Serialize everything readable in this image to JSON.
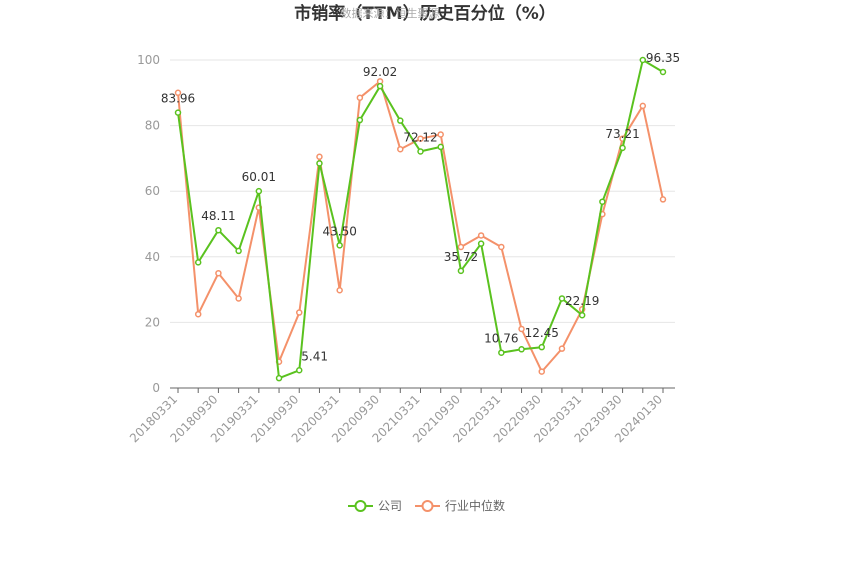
{
  "chart_data": {
    "type": "line",
    "title": "市销率（TTM）历史百分位（%）",
    "watermark": "数据来源：恒生聚源",
    "ylim": [
      0,
      100
    ],
    "y_ticks": [
      "0",
      "20",
      "40",
      "60",
      "80",
      "100"
    ],
    "x_tick_labels": [
      "20180331",
      "20180930",
      "20190331",
      "20190930",
      "20200331",
      "20200930",
      "20210331",
      "20210930",
      "20220331",
      "20220930",
      "20230331",
      "20230930",
      "20240130"
    ],
    "x": [
      "20180331",
      "20180630",
      "20180930",
      "20181231",
      "20190331",
      "20190630",
      "20190930",
      "20191231",
      "20200331",
      "20200630",
      "20200930",
      "20201231",
      "20210331",
      "20210630",
      "20210930",
      "20211231",
      "20220331",
      "20220630",
      "20220930",
      "20221231",
      "20230331",
      "20230630",
      "20230930",
      "20231231",
      "20240130"
    ],
    "series": [
      {
        "name": "公司",
        "color": "#5ac21f",
        "values": [
          83.96,
          38.3,
          48.11,
          41.8,
          60.01,
          3.0,
          5.41,
          68.5,
          43.5,
          81.7,
          92.02,
          81.5,
          72.12,
          73.5,
          35.72,
          44.0,
          10.76,
          11.8,
          12.45,
          27.3,
          22.19,
          56.8,
          73.21,
          100.0,
          96.35
        ],
        "labels": {
          "0": "83.96",
          "2": "48.11",
          "4": "60.01",
          "6": "5.41",
          "8": "43.50",
          "10": "92.02",
          "12": "72.12",
          "14": "35.72",
          "16": "10.76",
          "18": "12.45",
          "20": "22.19",
          "22": "73.21",
          "24": "96.35"
        }
      },
      {
        "name": "行业中位数",
        "color": "#f4916a",
        "values": [
          90.0,
          22.5,
          35.0,
          27.3,
          55.0,
          8.0,
          23.0,
          70.5,
          29.8,
          88.5,
          93.5,
          72.8,
          76.0,
          77.3,
          43.0,
          46.5,
          43.0,
          18.0,
          5.0,
          12.0,
          24.0,
          53.0,
          76.0,
          86.0,
          57.5
        ]
      }
    ],
    "grid": true,
    "legend_position": "bottom"
  }
}
